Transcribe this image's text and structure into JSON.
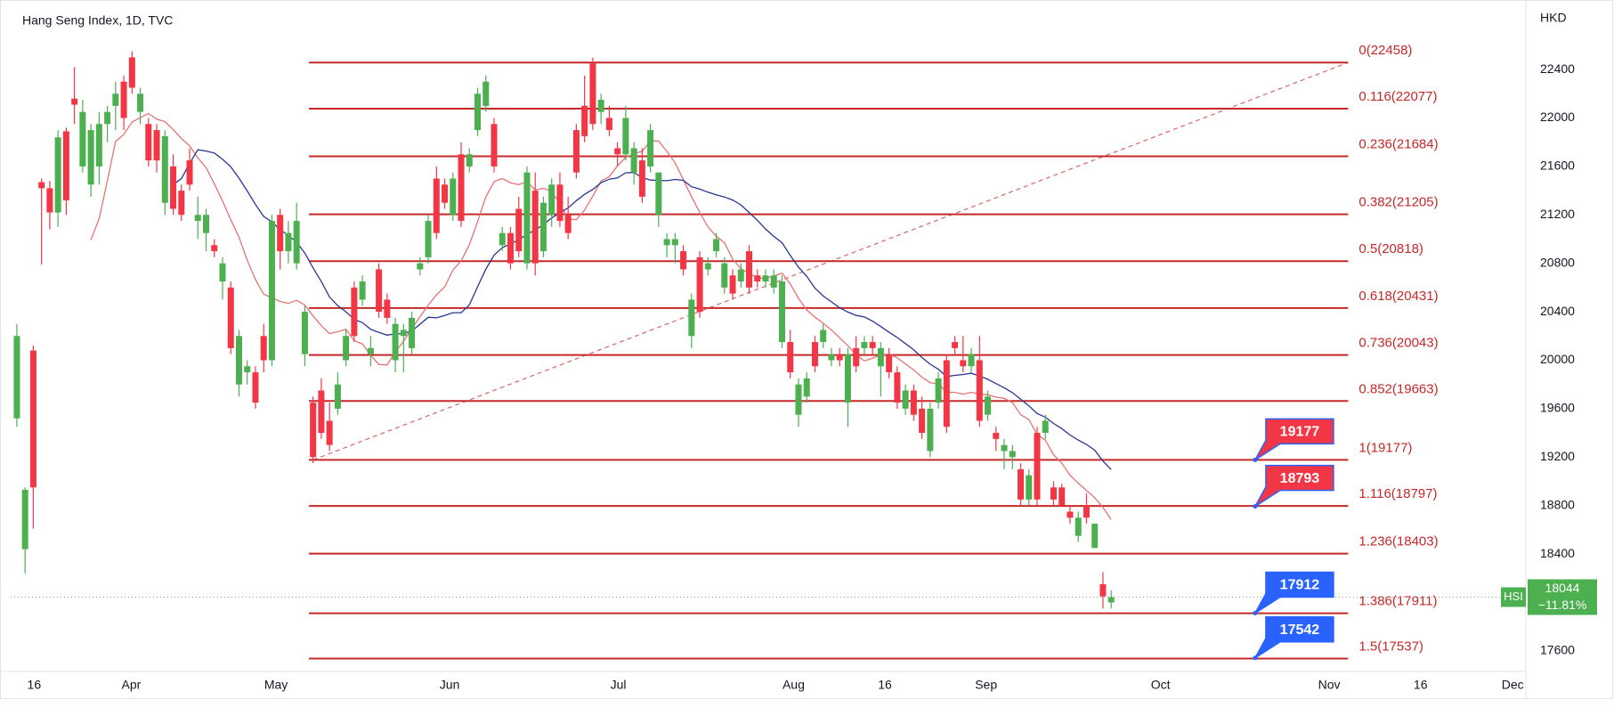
{
  "chart_data": {
    "type": "candlestick",
    "title": "Hang Seng Index, 1D, TVC",
    "currency": "HKD",
    "up_color": "#4caf50",
    "down_color": "#f23645",
    "xlim": [
      -0.75,
      183.4
    ],
    "xticks": [
      {
        "value": 2.1,
        "label": "16"
      },
      {
        "value": 13.9,
        "label": "Apr"
      },
      {
        "value": 31.5,
        "label": "May"
      },
      {
        "value": 52.6,
        "label": "Jun"
      },
      {
        "value": 73.1,
        "label": "Jul"
      },
      {
        "value": 94.4,
        "label": "Aug"
      },
      {
        "value": 105.5,
        "label": "16"
      },
      {
        "value": 117.8,
        "label": "Sep"
      },
      {
        "value": 139,
        "label": "Oct"
      },
      {
        "value": 159.5,
        "label": "Nov"
      },
      {
        "value": 170.6,
        "label": "16"
      },
      {
        "value": 181.8,
        "label": "Dec"
      }
    ],
    "ylim": [
      17430,
      22930
    ],
    "yticks": [
      17600,
      18000,
      18400,
      18800,
      19200,
      19600,
      20000,
      20400,
      20800,
      21200,
      21600,
      22000,
      22400
    ],
    "candles": [
      [
        19520,
        20300,
        19450,
        20200
      ],
      [
        18440,
        18950,
        18240,
        18930
      ],
      [
        20080,
        20120,
        18610,
        18950
      ],
      [
        21470,
        21500,
        20790,
        21420
      ],
      [
        21420,
        21480,
        21080,
        21220
      ],
      [
        21220,
        21900,
        21100,
        21840
      ],
      [
        21890,
        21920,
        21200,
        21320
      ],
      [
        22160,
        22420,
        21950,
        22110
      ],
      [
        21600,
        22150,
        21550,
        22050
      ],
      [
        21450,
        21950,
        21350,
        21900
      ],
      [
        21600,
        22050,
        21450,
        21950
      ],
      [
        21950,
        22100,
        21800,
        22050
      ],
      [
        22100,
        22300,
        21900,
        22200
      ],
      [
        22300,
        22350,
        21900,
        22000
      ],
      [
        22500,
        22550,
        22200,
        22250
      ],
      [
        22050,
        22250,
        21950,
        22200
      ],
      [
        21950,
        22000,
        21600,
        21650
      ],
      [
        21900,
        21950,
        21550,
        21650
      ],
      [
        21300,
        21900,
        21200,
        21850
      ],
      [
        21600,
        21700,
        21200,
        21250
      ],
      [
        21400,
        21450,
        21150,
        21200
      ],
      [
        21650,
        21750,
        21400,
        21450
      ],
      [
        21150,
        21350,
        21000,
        21200
      ],
      [
        21050,
        21250,
        20900,
        21200
      ],
      [
        20950,
        21000,
        20850,
        20900
      ],
      [
        20650,
        20850,
        20500,
        20800
      ],
      [
        20600,
        20650,
        20050,
        20100
      ],
      [
        19800,
        20250,
        19700,
        20200
      ],
      [
        19900,
        20000,
        19800,
        19950
      ],
      [
        19900,
        19950,
        19600,
        19650
      ],
      [
        20200,
        20300,
        19900,
        20000
      ],
      [
        20000,
        21200,
        19950,
        21150
      ],
      [
        21200,
        21250,
        20750,
        20900
      ],
      [
        20900,
        21150,
        20800,
        21050
      ],
      [
        20800,
        21300,
        20750,
        21150
      ],
      [
        20050,
        20450,
        19950,
        20400
      ],
      [
        19650,
        19700,
        19150,
        19200
      ],
      [
        19750,
        19850,
        19350,
        19400
      ],
      [
        19500,
        19650,
        19250,
        19300
      ],
      [
        19600,
        19900,
        19550,
        19800
      ],
      [
        20000,
        20250,
        19950,
        20200
      ],
      [
        20600,
        20650,
        20150,
        20200
      ],
      [
        20500,
        20700,
        20450,
        20650
      ],
      [
        20050,
        20200,
        19950,
        20100
      ],
      [
        20750,
        20800,
        20350,
        20400
      ],
      [
        20500,
        20550,
        20300,
        20350
      ],
      [
        20000,
        20350,
        19900,
        20300
      ],
      [
        20200,
        20300,
        19900,
        20250
      ],
      [
        20100,
        20400,
        20050,
        20350
      ],
      [
        20750,
        20850,
        20700,
        20800
      ],
      [
        20850,
        21200,
        20800,
        21150
      ],
      [
        21500,
        21600,
        21000,
        21050
      ],
      [
        21450,
        21500,
        21250,
        21300
      ],
      [
        21200,
        21550,
        21150,
        21500
      ],
      [
        21700,
        21800,
        21100,
        21150
      ],
      [
        21600,
        21750,
        21550,
        21700
      ],
      [
        21900,
        22250,
        21850,
        22200
      ],
      [
        22100,
        22350,
        22050,
        22300
      ],
      [
        21950,
        22000,
        21550,
        21600
      ],
      [
        20950,
        21100,
        20900,
        21050
      ],
      [
        21050,
        21100,
        20750,
        20800
      ],
      [
        21250,
        21350,
        20850,
        20900
      ],
      [
        20800,
        21600,
        20750,
        21550
      ],
      [
        21400,
        21550,
        20700,
        20800
      ],
      [
        20900,
        21350,
        20850,
        21300
      ],
      [
        21200,
        21500,
        21100,
        21450
      ],
      [
        21450,
        21550,
        21100,
        21150
      ],
      [
        21200,
        21350,
        21000,
        21050
      ],
      [
        21900,
        21950,
        21500,
        21550
      ],
      [
        22100,
        22350,
        21800,
        21850
      ],
      [
        22450,
        22500,
        21900,
        21950
      ],
      [
        22050,
        22200,
        21950,
        22150
      ],
      [
        22000,
        22100,
        21850,
        21900
      ],
      [
        21750,
        21800,
        21600,
        21700
      ],
      [
        21700,
        22100,
        21650,
        22000
      ],
      [
        21550,
        21800,
        21450,
        21750
      ],
      [
        21650,
        21750,
        21300,
        21350
      ],
      [
        21600,
        21950,
        21550,
        21900
      ],
      [
        21200,
        21550,
        21100,
        21550
      ],
      [
        20950,
        21050,
        20850,
        21000
      ],
      [
        20950,
        21050,
        20800,
        21000
      ],
      [
        20900,
        20950,
        20700,
        20750
      ],
      [
        20200,
        20550,
        20100,
        20500
      ],
      [
        20850,
        20900,
        20350,
        20400
      ],
      [
        20750,
        20850,
        20700,
        20800
      ],
      [
        20900,
        21050,
        20850,
        21000
      ],
      [
        20600,
        20850,
        20550,
        20800
      ],
      [
        20700,
        20750,
        20500,
        20550
      ],
      [
        20650,
        20800,
        20600,
        20750
      ],
      [
        20900,
        20950,
        20550,
        20600
      ],
      [
        20700,
        20750,
        20600,
        20650
      ],
      [
        20650,
        20750,
        20600,
        20700
      ],
      [
        20600,
        20750,
        20550,
        20700
      ],
      [
        20150,
        20700,
        20100,
        20650
      ],
      [
        20150,
        20250,
        19850,
        19900
      ],
      [
        19550,
        19850,
        19450,
        19800
      ],
      [
        19700,
        19900,
        19650,
        19850
      ],
      [
        20150,
        20200,
        19900,
        19950
      ],
      [
        20150,
        20300,
        20100,
        20250
      ],
      [
        20000,
        20100,
        19950,
        20050
      ],
      [
        20050,
        20100,
        19950,
        20000
      ],
      [
        19650,
        20100,
        19450,
        20050
      ],
      [
        20100,
        20200,
        19900,
        19950
      ],
      [
        20100,
        20200,
        20050,
        20150
      ],
      [
        20150,
        20200,
        20050,
        20100
      ],
      [
        19950,
        20150,
        19700,
        20100
      ],
      [
        20050,
        20100,
        19850,
        19900
      ],
      [
        19900,
        19950,
        19600,
        19650
      ],
      [
        19600,
        19800,
        19550,
        19750
      ],
      [
        19750,
        19800,
        19500,
        19550
      ],
      [
        19600,
        19700,
        19350,
        19400
      ],
      [
        19250,
        19650,
        19200,
        19600
      ],
      [
        19650,
        19900,
        19600,
        19850
      ],
      [
        20000,
        20050,
        19400,
        19450
      ],
      [
        20150,
        20200,
        20050,
        20100
      ],
      [
        20000,
        20200,
        19900,
        19950
      ],
      [
        19950,
        20100,
        19900,
        20050
      ],
      [
        20000,
        20200,
        19450,
        19500
      ],
      [
        19550,
        19750,
        19500,
        19700
      ],
      [
        19400,
        19450,
        19250,
        19350
      ],
      [
        19250,
        19350,
        19100,
        19300
      ],
      [
        19200,
        19300,
        19100,
        19250
      ],
      [
        19100,
        19150,
        18800,
        18850
      ],
      [
        18850,
        19100,
        18800,
        19050
      ],
      [
        19400,
        19450,
        18800,
        18850
      ],
      [
        19400,
        19550,
        19350,
        19500
      ],
      [
        18950,
        19000,
        18800,
        18850
      ],
      [
        18950,
        18980,
        18800,
        18800
      ],
      [
        18750,
        18800,
        18650,
        18700
      ],
      [
        18550,
        18750,
        18500,
        18700
      ],
      [
        18800,
        18900,
        18650,
        18700
      ],
      [
        18450,
        18650,
        18450,
        18650
      ],
      [
        18150,
        18250,
        17950,
        18050
      ],
      [
        18000,
        18100,
        17950,
        18044
      ]
    ],
    "moving_averages": [
      {
        "period": 10,
        "color": "#e57373"
      },
      {
        "period": 20,
        "color": "#283593"
      }
    ],
    "fibonacci": {
      "color": "#c62828",
      "x_range": [
        35.5,
        161.8
      ],
      "trend_line": {
        "x": [
          36,
          161.8
        ],
        "y": [
          19177,
          22458
        ]
      },
      "levels": [
        {
          "label": "0(22458)",
          "value": 22458
        },
        {
          "label": "0.116(22077)",
          "value": 22077
        },
        {
          "label": "0.236(21684)",
          "value": 21684
        },
        {
          "label": "0.382(21205)",
          "value": 21205
        },
        {
          "label": "0.5(20818)",
          "value": 20818
        },
        {
          "label": "0.618(20431)",
          "value": 20431
        },
        {
          "label": "0.736(20043)",
          "value": 20043
        },
        {
          "label": "0.852(19663)",
          "value": 19663
        },
        {
          "label": "1(19177)",
          "value": 19177
        },
        {
          "label": "1.116(18797)",
          "value": 18797
        },
        {
          "label": "1.236(18403)",
          "value": 18403
        },
        {
          "label": "1.386(17911)",
          "value": 17911
        },
        {
          "label": "1.5(17537)",
          "value": 17537
        }
      ]
    },
    "price_tags": [
      {
        "value": 19177,
        "color": "#f23645",
        "x": 150.5
      },
      {
        "value": 18793,
        "color": "#f23645",
        "x": 150.5
      },
      {
        "value": 17912,
        "color": "#2962ff",
        "x": 150.5
      },
      {
        "value": 17542,
        "color": "#2962ff",
        "x": 150.5
      }
    ],
    "last_price": {
      "symbol": "HSI",
      "value": 18044,
      "change": "−11.81%",
      "color": "#4caf50"
    }
  }
}
